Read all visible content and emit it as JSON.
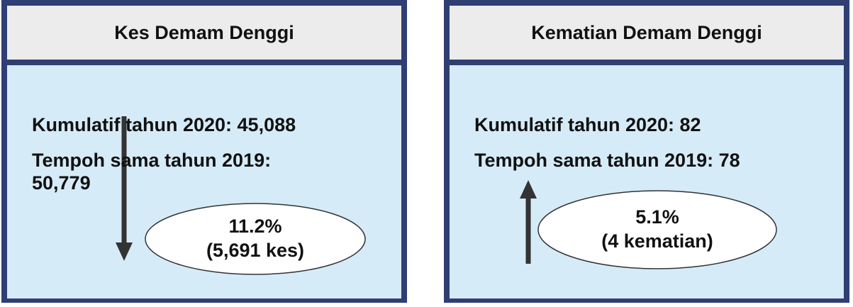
{
  "panels": [
    {
      "title": "Kes Demam Denggi",
      "lines": [
        "Kumulatif tahun 2020: 45,088",
        "Tempoh sama tahun 2019: 50,779"
      ],
      "change": {
        "percent": "11.2%",
        "detail": "(5,691 kes)"
      }
    },
    {
      "title": "Kematian Demam Denggi",
      "lines": [
        "Kumulatif tahun 2020: 82",
        "Tempoh sama tahun 2019: 78"
      ],
      "change": {
        "percent": "5.1%",
        "detail": "(4 kematian)"
      }
    }
  ]
}
